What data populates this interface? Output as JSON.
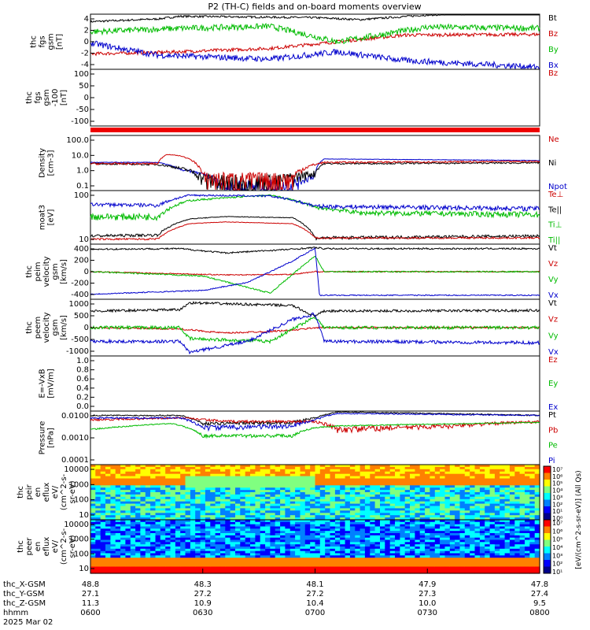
{
  "title": "P2 (TH-C) fields and on-board moments overview",
  "panels": [
    {
      "id": "fgs-gsm",
      "ylabel_lines": [
        "thc",
        "fgs",
        "gsm",
        "[nT]"
      ],
      "legend": [
        {
          "text": "Bt",
          "color": "#000000"
        },
        {
          "text": "Bz",
          "color": "#cc0000"
        },
        {
          "text": "By",
          "color": "#00bb00"
        },
        {
          "text": "Bx",
          "color": "#0000cc"
        }
      ],
      "yticks": [
        "4",
        "2",
        "0",
        "-2",
        "-4"
      ]
    },
    {
      "id": "fgs-lim",
      "ylabel_lines": [
        "thc",
        "fgs",
        "gsm",
        "-100",
        "[nT]"
      ],
      "legend": [
        {
          "text": "Bz",
          "color": "#cc0000"
        }
      ],
      "yticks": [
        "100",
        "50",
        "0",
        "-50",
        "-100"
      ]
    },
    {
      "id": "density",
      "ylabel_lines": [
        "Density",
        "[cm-3]"
      ],
      "legend": [
        {
          "text": "Ne",
          "color": "#cc0000"
        },
        {
          "text": "Ni",
          "color": "#000000"
        },
        {
          "text": "Npot",
          "color": "#0000cc"
        }
      ],
      "yticks": [
        "100.0",
        "10.0",
        "1.0",
        "0.1"
      ]
    },
    {
      "id": "temps",
      "ylabel_lines": [
        "moat3",
        "[eV]"
      ],
      "legend": [
        {
          "text": "Te⊥",
          "color": "#cc0000"
        },
        {
          "text": "Te||",
          "color": "#000000"
        },
        {
          "text": "Ti⊥",
          "color": "#00bb00"
        },
        {
          "text": "Ti||",
          "color": "#00bb00"
        }
      ],
      "yticks": [
        "100",
        "10"
      ]
    },
    {
      "id": "peim-vel",
      "ylabel_lines": [
        "thc",
        "peim",
        "velocity",
        "gsm",
        "[km/s]"
      ],
      "legend": [
        {
          "text": "Vt",
          "color": "#000000"
        },
        {
          "text": "Vz",
          "color": "#cc0000"
        },
        {
          "text": "Vy",
          "color": "#00bb00"
        },
        {
          "text": "Vx",
          "color": "#0000cc"
        }
      ],
      "yticks": [
        "400",
        "200",
        "0",
        "-200",
        "-400"
      ]
    },
    {
      "id": "peem-vel",
      "ylabel_lines": [
        "thc",
        "peem",
        "velocity",
        "gsm",
        "[km/s]"
      ],
      "legend": [
        {
          "text": "Vt",
          "color": "#000000"
        },
        {
          "text": "Vz",
          "color": "#cc0000"
        },
        {
          "text": "Vy",
          "color": "#00bb00"
        },
        {
          "text": "Vx",
          "color": "#0000cc"
        }
      ],
      "yticks": [
        "1000",
        "500",
        "0",
        "-500",
        "-1000"
      ]
    },
    {
      "id": "efield",
      "ylabel_lines": [
        "E=-VxB",
        "[mV/m]"
      ],
      "legend": [
        {
          "text": "Ez",
          "color": "#cc0000"
        },
        {
          "text": "Ey",
          "color": "#00bb00"
        },
        {
          "text": "Ex",
          "color": "#0000cc"
        }
      ],
      "yticks": [
        "1.0",
        "0.8",
        "0.6",
        "0.4",
        "0.2",
        "0.0"
      ]
    },
    {
      "id": "pressure",
      "ylabel_lines": [
        "Pressure",
        "[nPa]"
      ],
      "legend": [
        {
          "text": "Pt",
          "color": "#000000"
        },
        {
          "text": "Pb",
          "color": "#cc0000"
        },
        {
          "text": "Pe",
          "color": "#00bb00"
        },
        {
          "text": "Pi",
          "color": "#0000cc"
        }
      ],
      "yticks": [
        "0.0100",
        "0.0010",
        "0.0001"
      ]
    },
    {
      "id": "peir-eflux",
      "ylabel_lines": [
        "thc",
        "peir",
        "en",
        "eflux",
        "eV/",
        "(cm^2-s-",
        "sr-eV)"
      ],
      "legend": [],
      "yticks": [
        "10000",
        "1000",
        "100",
        "10"
      ]
    },
    {
      "id": "peer-eflux",
      "ylabel_lines": [
        "thc",
        "peer",
        "en",
        "eflux",
        "eV/",
        "(cm^2-s-",
        "sr-eV)"
      ],
      "legend": [],
      "yticks": [
        "10000",
        "1000",
        "100",
        "10"
      ]
    }
  ],
  "colorbar": {
    "ticks": [
      "10⁷",
      "10⁶",
      "10⁵",
      "10⁴",
      "10³",
      "10²",
      "10¹",
      "10⁰"
    ],
    "ticks2": [
      "10⁷",
      "10⁶",
      "10⁵",
      "10⁴",
      "10³",
      "10²",
      "10¹"
    ],
    "label": "[eV/(cm^2-s-sr-eV)] (All Qs)"
  },
  "xaxis": {
    "row_labels": [
      "thc_X-GSM",
      "thc_Y-GSM",
      "thc_Z-GSM",
      "hhmm",
      "2025 Mar 02"
    ],
    "ticks": [
      {
        "x": "48.8",
        "y": "27.1",
        "z": "11.3",
        "hhmm": "0600"
      },
      {
        "x": "48.3",
        "y": "27.2",
        "z": "10.9",
        "hhmm": "0630"
      },
      {
        "x": "48.1",
        "y": "27.2",
        "z": "10.4",
        "hhmm": "0700"
      },
      {
        "x": "47.9",
        "y": "27.3",
        "z": "10.0",
        "hhmm": "0730"
      },
      {
        "x": "47.8",
        "y": "27.4",
        "z": "9.5",
        "hhmm": "0800"
      }
    ]
  },
  "chart_data": {
    "type": "line",
    "title": "P2 (TH-C) fields and on-board moments overview",
    "time_axis": {
      "start": "0600",
      "end": "0800",
      "date": "2025 Mar 02"
    },
    "x": [
      "0600",
      "0620",
      "0630",
      "0640",
      "0650",
      "0700",
      "0715",
      "0730",
      "0745",
      "0800"
    ],
    "series": [
      {
        "name": "Bt",
        "values": [
          3.0,
          3.6,
          3.7,
          3.7,
          3.6,
          3.5,
          4.0,
          4.2,
          4.3,
          4.4
        ]
      },
      {
        "name": "Bz",
        "values": [
          -1.7,
          -1.5,
          -1.2,
          -0.8,
          -0.3,
          0.5,
          1.2,
          1.0,
          1.2,
          1.1
        ]
      },
      {
        "name": "By",
        "values": [
          1.5,
          2.0,
          2.0,
          2.5,
          2.0,
          1.5,
          1.8,
          2.5,
          2.5,
          2.0
        ]
      },
      {
        "name": "Bx",
        "values": [
          -0.5,
          -2.0,
          -2.5,
          -2.5,
          -2.8,
          -2.0,
          -2.8,
          -3.2,
          -3.3,
          -3.8
        ]
      },
      {
        "name": "Ni",
        "values": [
          3.0,
          2.5,
          0.15,
          0.15,
          0.5,
          3.0,
          3.0,
          3.0,
          3.0,
          3.0
        ]
      },
      {
        "name": "Ne",
        "values": [
          2.5,
          10,
          0.15,
          0.15,
          0.5,
          5.0,
          5.0,
          5.0,
          5.0,
          5.0
        ]
      },
      {
        "name": "Vx",
        "values": [
          -400,
          -400,
          -300,
          -100,
          200,
          -400,
          -400,
          -400,
          -400,
          -400
        ]
      },
      {
        "name": "Pt",
        "values": [
          0.02,
          0.02,
          0.008,
          0.008,
          0.012,
          0.03,
          0.025,
          0.02,
          0.02,
          0.02
        ]
      }
    ],
    "ylim": {
      "fgs-gsm": [
        -4,
        4
      ],
      "fgs-lim": [
        -120,
        100
      ],
      "peim-vel": [
        -500,
        500
      ],
      "peem-vel": [
        -1000,
        1000
      ],
      "efield": [
        0,
        1
      ]
    }
  }
}
